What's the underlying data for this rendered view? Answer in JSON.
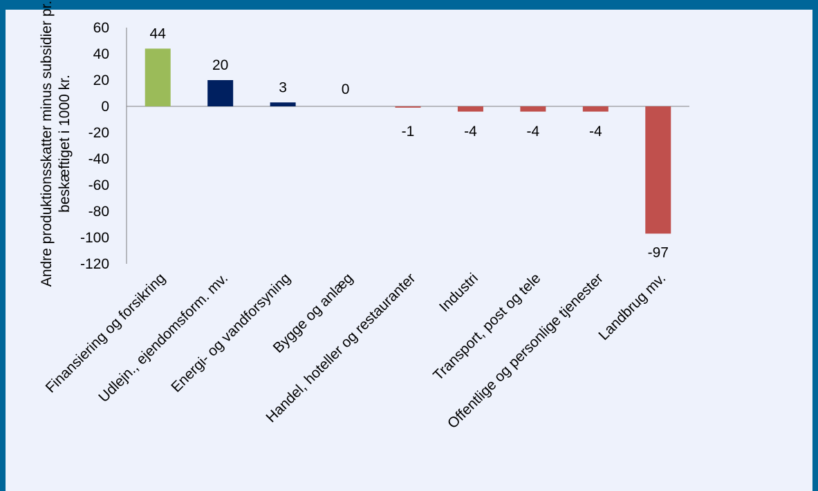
{
  "chart_data": {
    "type": "bar",
    "title": "",
    "xlabel": "",
    "ylabel_lines": [
      "Andre produktionsskatter minus subsidier pr.",
      "beskæftiget i 1000 kr."
    ],
    "ylim": [
      -120,
      60
    ],
    "yticks": [
      60,
      40,
      20,
      0,
      -20,
      -40,
      -60,
      -80,
      -100,
      -120
    ],
    "categories": [
      "Finansiering og forsikring",
      "Udlejn., ejendomsform. mv.",
      "Energi- og vandforsyning",
      "Bygge og anlæg",
      "Handel, hoteller og restauranter",
      "Industri",
      "Transport, post og tele",
      "Offentlige og personlige tjenester",
      "Landbrug mv."
    ],
    "values": [
      44,
      20,
      3,
      0,
      -1,
      -4,
      -4,
      -4,
      -97
    ],
    "value_labels": [
      "44",
      "20",
      "3",
      "0",
      "-1",
      "-4",
      "-4",
      "-4",
      "-97"
    ],
    "bar_colors": [
      "#9bbb59",
      "#002060",
      "#002060",
      "#002060",
      "#c0504d",
      "#c0504d",
      "#c0504d",
      "#c0504d",
      "#c0504d"
    ],
    "grid": false,
    "legend": "none"
  },
  "colors": {
    "frame": "#006699",
    "background": "#eef2fc",
    "axis": "#7f7f7f"
  }
}
